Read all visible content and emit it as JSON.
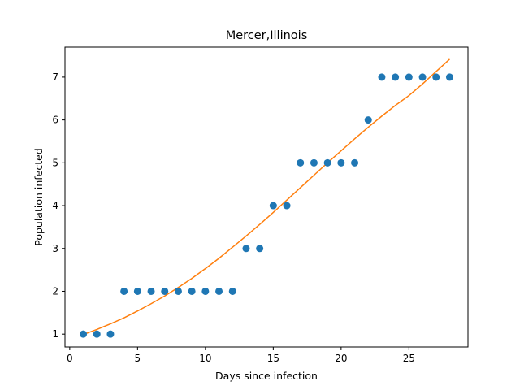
{
  "chart_data": {
    "type": "scatter",
    "title": "Mercer,Illinois",
    "xlabel": "Days since infection",
    "ylabel": "Population infected",
    "xlim": [
      -0.35,
      29.35
    ],
    "ylim": [
      0.7,
      7.7
    ],
    "xticks": [
      0,
      5,
      10,
      15,
      20,
      25
    ],
    "yticks": [
      1,
      2,
      3,
      4,
      5,
      6,
      7
    ],
    "grid": false,
    "series": [
      {
        "kind": "scatter",
        "color": "#1f77b4",
        "x": [
          1,
          2,
          3,
          4,
          5,
          6,
          7,
          8,
          9,
          10,
          11,
          12,
          13,
          14,
          15,
          16,
          17,
          18,
          19,
          20,
          21,
          22,
          23,
          24,
          25,
          26,
          27,
          28
        ],
        "y": [
          1,
          1,
          1,
          2,
          2,
          2,
          2,
          2,
          2,
          2,
          2,
          2,
          3,
          3,
          4,
          4,
          5,
          5,
          5,
          5,
          5,
          6,
          7,
          7,
          7,
          7,
          7,
          7
        ]
      },
      {
        "kind": "line",
        "color": "#ff7f0e",
        "x": [
          1,
          2,
          3,
          4,
          5,
          6,
          7,
          8,
          9,
          10,
          11,
          12,
          13,
          14,
          15,
          16,
          17,
          18,
          19,
          20,
          21,
          22,
          23,
          24,
          25,
          26,
          27,
          28
        ],
        "y": [
          0.99,
          1.11,
          1.24,
          1.38,
          1.54,
          1.71,
          1.89,
          2.09,
          2.3,
          2.53,
          2.77,
          3.03,
          3.29,
          3.56,
          3.84,
          4.13,
          4.42,
          4.71,
          5.0,
          5.28,
          5.56,
          5.83,
          6.09,
          6.34,
          6.57,
          6.84,
          7.13,
          7.42
        ]
      }
    ]
  }
}
